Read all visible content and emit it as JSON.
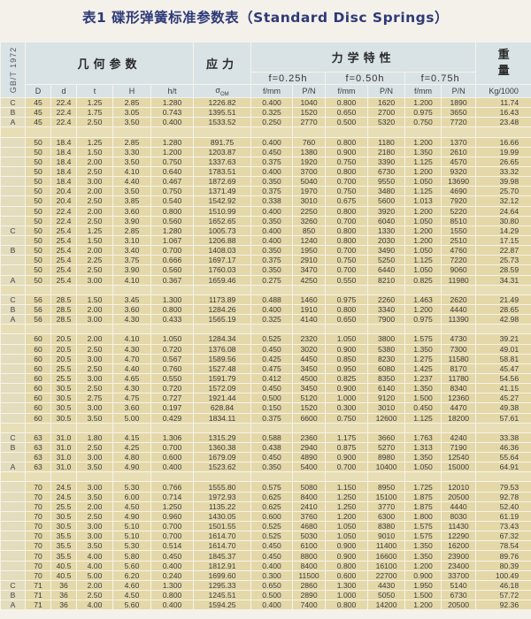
{
  "title": "表1 碟形弹簧标准参数表（Standard Disc Springs）",
  "header": {
    "standard": "GB/T 1972",
    "geometry": "几何参数",
    "stress": "应力",
    "mechanics": "力学特性",
    "weight_1": "重",
    "weight_2": "量",
    "f025": "f=0.25h",
    "f050": "f=0.50h",
    "f075": "f=0.75h",
    "columns": {
      "D": "D",
      "d": "d",
      "t": "t",
      "H": "H",
      "ht": "h/t",
      "sigma": "σ",
      "sigma_sub": "OM",
      "f1": "f/mm",
      "p1": "P/N",
      "f2": "f/mm",
      "p2": "P/N",
      "f3": "f/mm",
      "p3": "P/N",
      "kg": "Kg/1000"
    }
  },
  "rows": [
    [
      "C",
      "45",
      "22.4",
      "1.25",
      "2.85",
      "1.280",
      "1226.82",
      "0.400",
      "1040",
      "0.800",
      "1620",
      "1.200",
      "1890",
      "11.74"
    ],
    [
      "B",
      "45",
      "22.4",
      "1.75",
      "3.05",
      "0.743",
      "1395.51",
      "0.325",
      "1520",
      "0.650",
      "2700",
      "0.975",
      "3650",
      "16.43"
    ],
    [
      "A",
      "45",
      "22.4",
      "2.50",
      "3.50",
      "0.400",
      "1533.52",
      "0.250",
      "2770",
      "0.500",
      "5320",
      "0.750",
      "7720",
      "23.48"
    ],
    null,
    [
      "",
      "50",
      "18.4",
      "1.25",
      "2.85",
      "1.280",
      "891.75",
      "0.400",
      "760",
      "0.800",
      "1180",
      "1.200",
      "1370",
      "16.66"
    ],
    [
      "",
      "50",
      "18.4",
      "1.50",
      "3.30",
      "1.200",
      "1203.87",
      "0.450",
      "1380",
      "0.900",
      "2180",
      "1.350",
      "2610",
      "19.99"
    ],
    [
      "",
      "50",
      "18.4",
      "2.00",
      "3.50",
      "0.750",
      "1337.63",
      "0.375",
      "1920",
      "0.750",
      "3390",
      "1.125",
      "4570",
      "26.65"
    ],
    [
      "",
      "50",
      "18.4",
      "2.50",
      "4.10",
      "0.640",
      "1783.51",
      "0.400",
      "3700",
      "0.800",
      "6730",
      "1.200",
      "9320",
      "33.32"
    ],
    [
      "",
      "50",
      "18.4",
      "3.00",
      "4.40",
      "0.467",
      "1872.69",
      "0.350",
      "5040",
      "0.700",
      "9550",
      "1.050",
      "13690",
      "39.98"
    ],
    [
      "",
      "50",
      "20.4",
      "2.00",
      "3.50",
      "0.750",
      "1371.49",
      "0.375",
      "1970",
      "0.750",
      "3480",
      "1.125",
      "4690",
      "25.70"
    ],
    [
      "",
      "50",
      "20.4",
      "2.50",
      "3.85",
      "0.540",
      "1542.92",
      "0.338",
      "3010",
      "0.675",
      "5600",
      "1.013",
      "7920",
      "32.12"
    ],
    [
      "",
      "50",
      "22.4",
      "2.00",
      "3.60",
      "0.800",
      "1510.99",
      "0.400",
      "2250",
      "0.800",
      "3920",
      "1.200",
      "5220",
      "24.64"
    ],
    [
      "",
      "50",
      "22.4",
      "2.50",
      "3.90",
      "0.560",
      "1652.65",
      "0.350",
      "3260",
      "0.700",
      "6040",
      "1.050",
      "8510",
      "30.80"
    ],
    [
      "C",
      "50",
      "25.4",
      "1.25",
      "2.85",
      "1.280",
      "1005.73",
      "0.400",
      "850",
      "0.800",
      "1330",
      "1.200",
      "1550",
      "14.29"
    ],
    [
      "",
      "50",
      "25.4",
      "1.50",
      "3.10",
      "1.067",
      "1206.88",
      "0.400",
      "1240",
      "0.800",
      "2030",
      "1.200",
      "2510",
      "17.15"
    ],
    [
      "B",
      "50",
      "25.4",
      "2.00",
      "3.40",
      "0.700",
      "1408.03",
      "0.350",
      "1950",
      "0.700",
      "3490",
      "1.050",
      "4760",
      "22.87"
    ],
    [
      "",
      "50",
      "25.4",
      "2.25",
      "3.75",
      "0.666",
      "1697.17",
      "0.375",
      "2910",
      "0.750",
      "5250",
      "1.125",
      "7220",
      "25.73"
    ],
    [
      "",
      "50",
      "25.4",
      "2.50",
      "3.90",
      "0.560",
      "1760.03",
      "0.350",
      "3470",
      "0.700",
      "6440",
      "1.050",
      "9060",
      "28.59"
    ],
    [
      "A",
      "50",
      "25.4",
      "3.00",
      "4.10",
      "0.367",
      "1659.46",
      "0.275",
      "4250",
      "0.550",
      "8210",
      "0.825",
      "11980",
      "34.31"
    ],
    null,
    [
      "C",
      "56",
      "28.5",
      "1.50",
      "3.45",
      "1.300",
      "1173.89",
      "0.488",
      "1460",
      "0.975",
      "2260",
      "1.463",
      "2620",
      "21.49"
    ],
    [
      "B",
      "56",
      "28.5",
      "2.00",
      "3.60",
      "0.800",
      "1284.26",
      "0.400",
      "1910",
      "0.800",
      "3340",
      "1.200",
      "4440",
      "28.65"
    ],
    [
      "A",
      "56",
      "28.5",
      "3.00",
      "4.30",
      "0.433",
      "1565.19",
      "0.325",
      "4140",
      "0.650",
      "7900",
      "0.975",
      "11390",
      "42.98"
    ],
    null,
    [
      "",
      "60",
      "20.5",
      "2.00",
      "4.10",
      "1.050",
      "1284.34",
      "0.525",
      "2320",
      "1.050",
      "3800",
      "1.575",
      "4730",
      "39.21"
    ],
    [
      "",
      "60",
      "20.5",
      "2.50",
      "4.30",
      "0.720",
      "1376.08",
      "0.450",
      "3020",
      "0.900",
      "5380",
      "1.350",
      "7300",
      "49.01"
    ],
    [
      "",
      "60",
      "20.5",
      "3.00",
      "4.70",
      "0.567",
      "1589.56",
      "0.425",
      "4450",
      "0.850",
      "8230",
      "1.275",
      "11580",
      "58.81"
    ],
    [
      "",
      "60",
      "25.5",
      "2.50",
      "4.40",
      "0.760",
      "1527.48",
      "0.475",
      "3450",
      "0.950",
      "6080",
      "1.425",
      "8170",
      "45.47"
    ],
    [
      "",
      "60",
      "25.5",
      "3.00",
      "4.65",
      "0.550",
      "1591.79",
      "0.412",
      "4500",
      "0.825",
      "8350",
      "1.237",
      "11780",
      "54.56"
    ],
    [
      "",
      "60",
      "30.5",
      "2.50",
      "4.30",
      "0.720",
      "1572.09",
      "0.450",
      "3450",
      "0.900",
      "6140",
      "1.350",
      "8340",
      "41.15"
    ],
    [
      "",
      "60",
      "30.5",
      "2.75",
      "4.75",
      "0.727",
      "1921.44",
      "0.500",
      "5120",
      "1.000",
      "9120",
      "1.500",
      "12360",
      "45.27"
    ],
    [
      "",
      "60",
      "30.5",
      "3.00",
      "3.60",
      "0.197",
      "628.84",
      "0.150",
      "1520",
      "0.300",
      "3010",
      "0.450",
      "4470",
      "49.38"
    ],
    [
      "",
      "60",
      "30.5",
      "3.50",
      "5.00",
      "0.429",
      "1834.11",
      "0.375",
      "6600",
      "0.750",
      "12600",
      "1.125",
      "18200",
      "57.61"
    ],
    null,
    [
      "C",
      "63",
      "31.0",
      "1.80",
      "4.15",
      "1.306",
      "1315.29",
      "0.588",
      "2360",
      "1.175",
      "3660",
      "1.763",
      "4240",
      "33.38"
    ],
    [
      "B",
      "63",
      "31.0",
      "2.50",
      "4.25",
      "0.700",
      "1360.38",
      "0.438",
      "2940",
      "0.875",
      "5270",
      "1.313",
      "7190",
      "46.36"
    ],
    [
      "",
      "63",
      "31.0",
      "3.00",
      "4.80",
      "0.600",
      "1679.09",
      "0.450",
      "4890",
      "0.900",
      "8980",
      "1.350",
      "12540",
      "55.64"
    ],
    [
      "A",
      "63",
      "31.0",
      "3.50",
      "4.90",
      "0.400",
      "1523.62",
      "0.350",
      "5400",
      "0.700",
      "10400",
      "1.050",
      "15000",
      "64.91"
    ],
    null,
    [
      "",
      "70",
      "24.5",
      "3.00",
      "5.30",
      "0.766",
      "1555.80",
      "0.575",
      "5080",
      "1.150",
      "8950",
      "1.725",
      "12010",
      "79.53"
    ],
    [
      "",
      "70",
      "24.5",
      "3.50",
      "6.00",
      "0.714",
      "1972.93",
      "0.625",
      "8400",
      "1.250",
      "15100",
      "1.875",
      "20500",
      "92.78"
    ],
    [
      "",
      "70",
      "25.5",
      "2.00",
      "4.50",
      "1.250",
      "1135.22",
      "0.625",
      "2410",
      "1.250",
      "3770",
      "1.875",
      "4440",
      "52.40"
    ],
    [
      "",
      "70",
      "30.5",
      "2.50",
      "4.90",
      "0.960",
      "1430.05",
      "0.600",
      "3760",
      "1.200",
      "6300",
      "1.800",
      "8030",
      "61.19"
    ],
    [
      "",
      "70",
      "30.5",
      "3.00",
      "5.10",
      "0.700",
      "1501.55",
      "0.525",
      "4680",
      "1.050",
      "8380",
      "1.575",
      "11430",
      "73.43"
    ],
    [
      "",
      "70",
      "35.5",
      "3.00",
      "5.10",
      "0.700",
      "1614.70",
      "0.525",
      "5030",
      "1.050",
      "9010",
      "1.575",
      "12290",
      "67.32"
    ],
    [
      "",
      "70",
      "35.5",
      "3.50",
      "5.30",
      "0.514",
      "1614.70",
      "0.450",
      "6100",
      "0.900",
      "11400",
      "1.350",
      "16200",
      "78.54"
    ],
    [
      "",
      "70",
      "35.5",
      "4.00",
      "5.80",
      "0.450",
      "1845.37",
      "0.450",
      "8800",
      "0.900",
      "16600",
      "1.350",
      "23900",
      "89.76"
    ],
    [
      "",
      "70",
      "40.5",
      "4.00",
      "5.60",
      "0.400",
      "1812.91",
      "0.400",
      "8400",
      "0.800",
      "16100",
      "1.200",
      "23400",
      "80.39"
    ],
    [
      "",
      "70",
      "40.5",
      "5.00",
      "6.20",
      "0.240",
      "1699.60",
      "0.300",
      "11500",
      "0.600",
      "22700",
      "0.900",
      "33700",
      "100.49"
    ],
    [
      "C",
      "71",
      "36",
      "2.00",
      "4.60",
      "1.300",
      "1295.33",
      "0.650",
      "2860",
      "1.300",
      "4430",
      "1.950",
      "5140",
      "46.18"
    ],
    [
      "B",
      "71",
      "36",
      "2.50",
      "4.50",
      "0.800",
      "1245.51",
      "0.500",
      "2890",
      "1.000",
      "5050",
      "1.500",
      "6730",
      "57.72"
    ],
    [
      "A",
      "71",
      "36",
      "4.00",
      "5.60",
      "0.400",
      "1594.25",
      "0.400",
      "7400",
      "0.800",
      "14200",
      "1.200",
      "20500",
      "92.36"
    ]
  ]
}
